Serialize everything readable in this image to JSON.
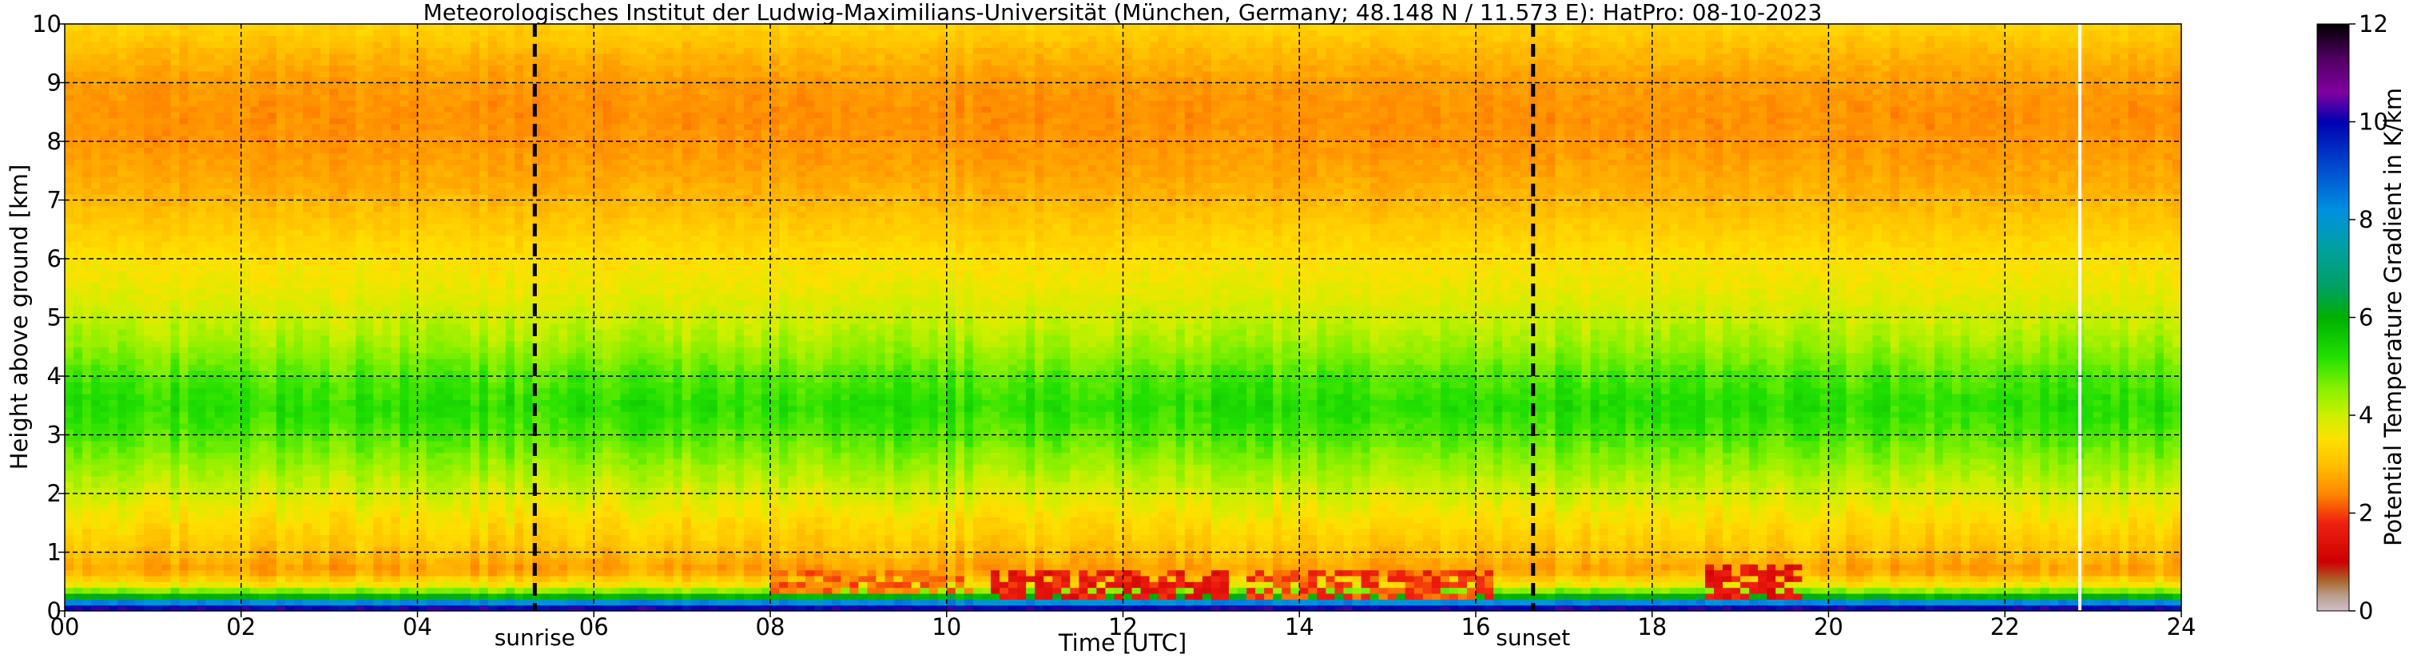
{
  "chart_data": {
    "type": "heatmap",
    "title": "Meteorologisches Institut der Ludwig-Maximilians-Universität (München, Germany; 48.148 N / 11.573 E):    HatPro: 08-10-2023",
    "xlabel": "Time [UTC]",
    "ylabel": "Height above ground [km]",
    "colorbar_label": "Potential Temperature Gradient in K/km",
    "xlim": [
      0,
      24
    ],
    "ylim": [
      0,
      10
    ],
    "clim": [
      0,
      12
    ],
    "x_ticks": [
      0,
      2,
      4,
      6,
      8,
      10,
      12,
      14,
      16,
      18,
      20,
      22,
      24
    ],
    "x_tick_labels": [
      "00",
      "02",
      "04",
      "06",
      "08",
      "10",
      "12",
      "14",
      "16",
      "18",
      "20",
      "22",
      "24"
    ],
    "y_ticks": [
      0,
      1,
      2,
      3,
      4,
      5,
      6,
      7,
      8,
      9,
      10
    ],
    "y_tick_labels": [
      "0",
      "1",
      "2",
      "3",
      "4",
      "5",
      "6",
      "7",
      "8",
      "9",
      "10"
    ],
    "colorbar_ticks": [
      0,
      2,
      4,
      6,
      8,
      10,
      12
    ],
    "colorbar_tick_labels": [
      "0",
      "2",
      "4",
      "6",
      "8",
      "10",
      "12"
    ],
    "grid": true,
    "markers": [
      {
        "label": "sunrise",
        "x": 5.33
      },
      {
        "label": "sunset",
        "x": 16.65
      }
    ],
    "data_gap_x": 22.85,
    "vertical_profile": [
      {
        "z": 0.0,
        "v": 10.5
      },
      {
        "z": 0.1,
        "v": 9.5
      },
      {
        "z": 0.2,
        "v": 7.0
      },
      {
        "z": 0.3,
        "v": 5.0
      },
      {
        "z": 0.45,
        "v": 3.6
      },
      {
        "z": 0.7,
        "v": 2.6
      },
      {
        "z": 1.0,
        "v": 3.0
      },
      {
        "z": 1.5,
        "v": 3.4
      },
      {
        "z": 2.0,
        "v": 3.9
      },
      {
        "z": 2.6,
        "v": 4.5
      },
      {
        "z": 3.0,
        "v": 4.9
      },
      {
        "z": 3.5,
        "v": 5.2
      },
      {
        "z": 4.0,
        "v": 4.9
      },
      {
        "z": 4.5,
        "v": 4.4
      },
      {
        "z": 5.0,
        "v": 4.0
      },
      {
        "z": 5.5,
        "v": 3.7
      },
      {
        "z": 6.0,
        "v": 3.5
      },
      {
        "z": 6.5,
        "v": 3.2
      },
      {
        "z": 7.0,
        "v": 2.9
      },
      {
        "z": 7.5,
        "v": 2.7
      },
      {
        "z": 8.0,
        "v": 2.55
      },
      {
        "z": 8.5,
        "v": 2.5
      },
      {
        "z": 9.0,
        "v": 2.6
      },
      {
        "z": 9.5,
        "v": 2.9
      },
      {
        "z": 10.0,
        "v": 3.3
      }
    ],
    "warm_patches": [
      {
        "x0": 8.0,
        "x1": 10.3,
        "z0": 0.3,
        "z1": 0.75,
        "v": 2.3
      },
      {
        "x0": 10.5,
        "x1": 13.2,
        "z0": 0.25,
        "z1": 0.75,
        "v": 1.6
      },
      {
        "x0": 13.4,
        "x1": 16.2,
        "z0": 0.25,
        "z1": 0.7,
        "v": 2.0
      },
      {
        "x0": 18.6,
        "x1": 19.7,
        "z0": 0.2,
        "z1": 0.85,
        "v": 1.5
      }
    ],
    "colormap": [
      {
        "v": 0.0,
        "color": "#d4bcc8"
      },
      {
        "v": 0.3,
        "color": "#b8a090"
      },
      {
        "v": 0.6,
        "color": "#a86a30"
      },
      {
        "v": 1.0,
        "color": "#cc0000"
      },
      {
        "v": 1.8,
        "color": "#f02010"
      },
      {
        "v": 2.4,
        "color": "#ff8800"
      },
      {
        "v": 3.0,
        "color": "#ffc000"
      },
      {
        "v": 3.5,
        "color": "#ffe000"
      },
      {
        "v": 4.0,
        "color": "#ccf000"
      },
      {
        "v": 4.6,
        "color": "#80f000"
      },
      {
        "v": 5.2,
        "color": "#20e000"
      },
      {
        "v": 6.0,
        "color": "#00b000"
      },
      {
        "v": 6.6,
        "color": "#00a060"
      },
      {
        "v": 7.4,
        "color": "#00a0a0"
      },
      {
        "v": 8.2,
        "color": "#0090e0"
      },
      {
        "v": 9.0,
        "color": "#0050d0"
      },
      {
        "v": 10.0,
        "color": "#0000b0"
      },
      {
        "v": 10.6,
        "color": "#8000a0"
      },
      {
        "v": 11.3,
        "color": "#500060"
      },
      {
        "v": 12.0,
        "color": "#000000"
      }
    ]
  }
}
